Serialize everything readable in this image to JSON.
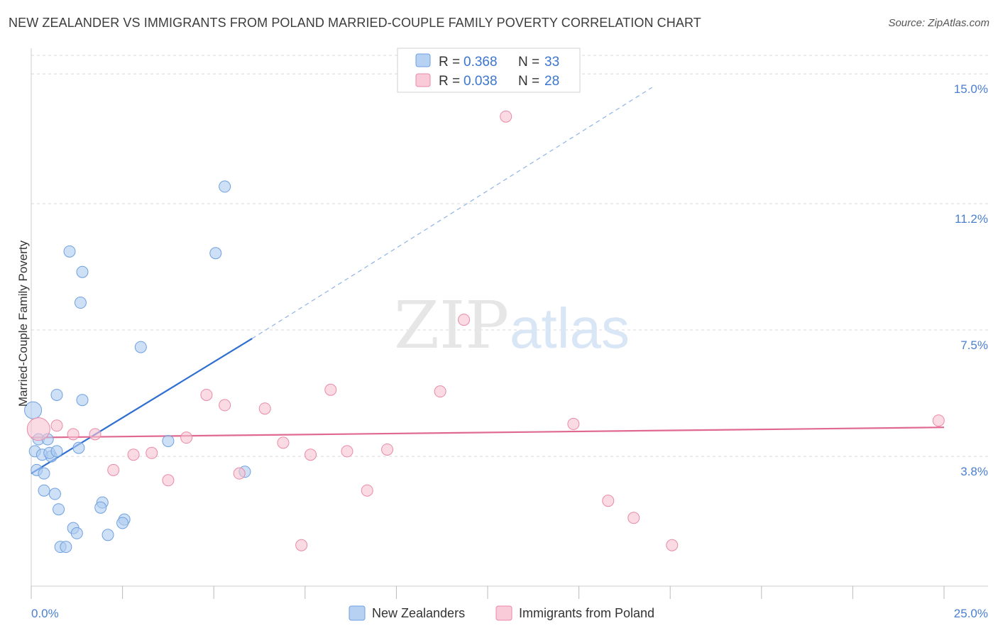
{
  "title": "NEW ZEALANDER VS IMMIGRANTS FROM POLAND MARRIED-COUPLE FAMILY POVERTY CORRELATION CHART",
  "source": "Source: ZipAtlas.com",
  "colors": {
    "blue_fill": "#aecbf0",
    "blue_stroke": "#6fa0e0",
    "blue_line": "#2f6fd0",
    "pink_fill": "#f6c3d1",
    "pink_stroke": "#e98aa8",
    "pink_line": "#e0698f",
    "tick_color": "#4a7fcf",
    "grid": "#d9d9d9"
  },
  "legend": {
    "rows": [
      {
        "r_label": "R = ",
        "r_value": "0.368",
        "n_label": "N = ",
        "n_value": "33",
        "color": "blue"
      },
      {
        "r_label": "R = ",
        "r_value": "0.038",
        "n_label": "N = ",
        "n_value": "28",
        "color": "pink"
      }
    ]
  },
  "chart_data": {
    "type": "scatter",
    "title": "NEW ZEALANDER VS IMMIGRANTS FROM POLAND MARRIED-COUPLE FAMILY POVERTY CORRELATION CHART",
    "xlabel": "",
    "ylabel": "Married-Couple Family Poverty",
    "xlim": [
      0,
      25
    ],
    "ylim": [
      0,
      15.5
    ],
    "x_tick_labels": [
      "0.0%",
      "25.0%"
    ],
    "y_ticks": [
      3.8,
      7.5,
      11.2,
      15.0
    ],
    "y_tick_labels": [
      "3.8%",
      "7.5%",
      "11.2%",
      "15.0%"
    ],
    "grid": true,
    "legend_position": "top-center",
    "watermark": {
      "a": "ZIP",
      "b": "atlas"
    },
    "series": [
      {
        "name": "New Zealanders",
        "color": "blue",
        "points": [
          [
            0.05,
            5.15,
            12
          ],
          [
            0.2,
            4.3,
            8
          ],
          [
            0.1,
            3.95,
            8
          ],
          [
            0.15,
            3.4,
            8
          ],
          [
            0.3,
            3.85,
            8
          ],
          [
            0.45,
            4.3,
            8
          ],
          [
            0.55,
            3.8,
            8
          ],
          [
            0.5,
            3.9,
            8
          ],
          [
            0.35,
            3.3,
            8
          ],
          [
            0.7,
            3.95,
            8
          ],
          [
            0.35,
            2.8,
            8
          ],
          [
            0.65,
            2.7,
            8
          ],
          [
            0.7,
            5.6,
            8
          ],
          [
            0.75,
            2.25,
            8
          ],
          [
            1.05,
            9.8,
            8
          ],
          [
            1.4,
            9.2,
            8
          ],
          [
            1.35,
            8.3,
            8
          ],
          [
            1.4,
            5.45,
            8
          ],
          [
            1.3,
            4.05,
            8
          ],
          [
            1.15,
            1.7,
            8
          ],
          [
            1.25,
            1.55,
            8
          ],
          [
            0.8,
            1.15,
            8
          ],
          [
            0.95,
            1.15,
            8
          ],
          [
            1.95,
            2.45,
            8
          ],
          [
            1.9,
            2.3,
            8
          ],
          [
            2.55,
            1.95,
            8
          ],
          [
            2.5,
            1.85,
            8
          ],
          [
            2.1,
            1.5,
            8
          ],
          [
            3.0,
            7.0,
            8
          ],
          [
            3.75,
            4.25,
            8
          ],
          [
            5.3,
            11.7,
            8
          ],
          [
            5.05,
            9.75,
            8
          ],
          [
            5.85,
            3.35,
            8
          ]
        ],
        "trend": {
          "x0": 0.0,
          "y0": 3.3,
          "x1": 6.05,
          "y1": 7.25,
          "dash_x1": 17.0,
          "dash_y1": 14.6
        }
      },
      {
        "name": "Immigrants from Poland",
        "color": "pink",
        "points": [
          [
            0.2,
            4.6,
            16
          ],
          [
            0.7,
            4.7,
            8
          ],
          [
            1.15,
            4.45,
            8
          ],
          [
            1.75,
            4.45,
            8
          ],
          [
            2.25,
            3.4,
            8
          ],
          [
            2.8,
            3.85,
            8
          ],
          [
            3.3,
            3.9,
            8
          ],
          [
            3.75,
            3.1,
            8
          ],
          [
            4.25,
            4.35,
            8
          ],
          [
            4.8,
            5.6,
            8
          ],
          [
            5.3,
            5.3,
            8
          ],
          [
            5.7,
            3.3,
            8
          ],
          [
            6.4,
            5.2,
            8
          ],
          [
            6.9,
            4.2,
            8
          ],
          [
            7.4,
            1.2,
            8
          ],
          [
            7.65,
            3.85,
            8
          ],
          [
            8.2,
            5.75,
            8
          ],
          [
            8.65,
            3.95,
            8
          ],
          [
            9.2,
            2.8,
            8
          ],
          [
            9.75,
            4.0,
            8
          ],
          [
            11.2,
            5.7,
            8
          ],
          [
            11.85,
            7.8,
            8
          ],
          [
            13.0,
            13.75,
            8
          ],
          [
            14.85,
            4.75,
            8
          ],
          [
            15.8,
            2.5,
            8
          ],
          [
            16.5,
            2.0,
            8
          ],
          [
            17.55,
            1.2,
            8
          ],
          [
            24.85,
            4.85,
            8
          ]
        ],
        "trend": {
          "x0": 0.0,
          "y0": 4.35,
          "x1": 25.0,
          "y1": 4.65
        }
      }
    ]
  }
}
